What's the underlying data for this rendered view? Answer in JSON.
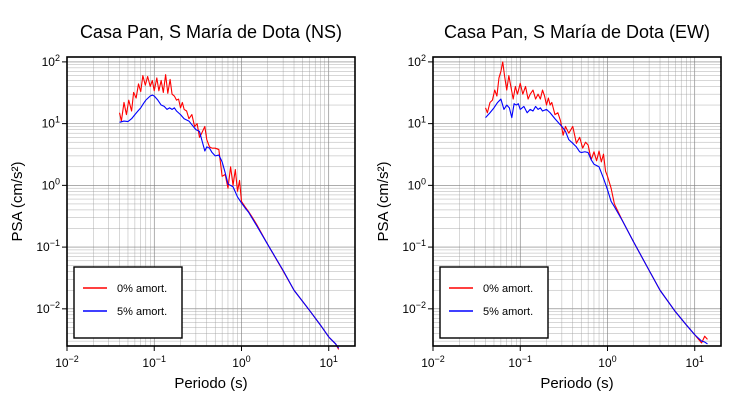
{
  "figure": {
    "background": "#ffffff"
  },
  "chart_data": [
    {
      "type": "line",
      "title": "Casa Pan, S María de Dota (NS)",
      "xlabel": "Periodo (s)",
      "ylabel": "PSA (cm/s²)",
      "xscale": "log",
      "yscale": "log",
      "xlim": [
        0.01,
        20
      ],
      "ylim": [
        0.0025,
        120
      ],
      "xticks": [
        {
          "base": "10",
          "exp": "−2"
        },
        {
          "base": "10",
          "exp": "−1"
        },
        {
          "base": "10",
          "exp": "0"
        },
        {
          "base": "10",
          "exp": "1"
        }
      ],
      "yticks": [
        {
          "base": "10",
          "exp": "−2"
        },
        {
          "base": "10",
          "exp": "−1"
        },
        {
          "base": "10",
          "exp": "0"
        },
        {
          "base": "10",
          "exp": "1"
        },
        {
          "base": "10",
          "exp": "2"
        }
      ],
      "grid": true,
      "legend_position": "bottom-left",
      "series": [
        {
          "name": "0% amort.",
          "color": "#ff0000",
          "x": [
            0.04,
            0.042,
            0.045,
            0.048,
            0.051,
            0.055,
            0.058,
            0.062,
            0.066,
            0.07,
            0.074,
            0.079,
            0.084,
            0.09,
            0.095,
            0.1,
            0.107,
            0.113,
            0.12,
            0.127,
            0.135,
            0.143,
            0.152,
            0.16,
            0.17,
            0.18,
            0.19,
            0.2,
            0.21,
            0.22,
            0.235,
            0.25,
            0.27,
            0.29,
            0.31,
            0.33,
            0.35,
            0.38,
            0.4,
            0.43,
            0.46,
            0.5,
            0.55,
            0.6,
            0.65,
            0.7,
            0.75,
            0.8,
            0.85,
            0.9,
            0.95,
            1.0,
            1.1,
            1.2,
            1.3,
            1.5,
            2.0,
            3.0,
            4.0,
            6.0,
            8.0,
            10.0,
            12.0,
            13.0
          ],
          "y": [
            15,
            11,
            22,
            14,
            24,
            16,
            32,
            26,
            44,
            33,
            60,
            42,
            58,
            40,
            50,
            34,
            55,
            34,
            50,
            32,
            62,
            31,
            52,
            30,
            28,
            24,
            25,
            18,
            22,
            17,
            16,
            12,
            14,
            9,
            10,
            6,
            7,
            9,
            5.5,
            4.2,
            4.0,
            4.0,
            3.8,
            1.4,
            1.5,
            0.9,
            2.0,
            1.0,
            1.8,
            0.8,
            1.2,
            0.55,
            0.45,
            0.38,
            0.32,
            0.23,
            0.11,
            0.041,
            0.02,
            0.0095,
            0.0055,
            0.0035,
            0.0027,
            0.0022
          ]
        },
        {
          "name": "5% amort.",
          "color": "#0000ff",
          "x": [
            0.04,
            0.045,
            0.05,
            0.055,
            0.06,
            0.065,
            0.07,
            0.075,
            0.08,
            0.085,
            0.09,
            0.095,
            0.1,
            0.11,
            0.12,
            0.13,
            0.14,
            0.15,
            0.16,
            0.17,
            0.18,
            0.2,
            0.22,
            0.25,
            0.28,
            0.3,
            0.33,
            0.35,
            0.38,
            0.4,
            0.43,
            0.46,
            0.5,
            0.55,
            0.6,
            0.65,
            0.7,
            0.8,
            0.9,
            1.0,
            1.1,
            1.2,
            1.5,
            2.0,
            3.0,
            4.0,
            6.0,
            8.0,
            10.0,
            12.0,
            13.0
          ],
          "y": [
            10.5,
            11,
            10.8,
            12,
            14,
            16,
            18,
            21,
            24,
            26,
            28,
            29,
            28,
            24,
            20,
            19,
            17,
            18,
            17,
            18,
            16,
            14,
            12,
            11,
            9,
            8,
            7.5,
            5.5,
            3.6,
            4.2,
            4.0,
            3.4,
            3.0,
            3.1,
            2.4,
            1.6,
            1.05,
            0.95,
            0.65,
            0.52,
            0.43,
            0.37,
            0.22,
            0.11,
            0.042,
            0.02,
            0.0095,
            0.0055,
            0.0035,
            0.0027,
            0.0023
          ]
        }
      ]
    },
    {
      "type": "line",
      "title": "Casa Pan, S María de Dota (EW)",
      "xlabel": "Periodo (s)",
      "ylabel": "PSA (cm/s²)",
      "xscale": "log",
      "yscale": "log",
      "xlim": [
        0.01,
        20
      ],
      "ylim": [
        0.0025,
        120
      ],
      "xticks": [
        {
          "base": "10",
          "exp": "−2"
        },
        {
          "base": "10",
          "exp": "−1"
        },
        {
          "base": "10",
          "exp": "0"
        },
        {
          "base": "10",
          "exp": "1"
        }
      ],
      "yticks": [
        {
          "base": "10",
          "exp": "−2"
        },
        {
          "base": "10",
          "exp": "−1"
        },
        {
          "base": "10",
          "exp": "0"
        },
        {
          "base": "10",
          "exp": "1"
        },
        {
          "base": "10",
          "exp": "2"
        }
      ],
      "grid": true,
      "legend_position": "bottom-left",
      "series": [
        {
          "name": "0% amort.",
          "color": "#ff0000",
          "x": [
            0.04,
            0.042,
            0.045,
            0.048,
            0.051,
            0.054,
            0.057,
            0.06,
            0.063,
            0.066,
            0.07,
            0.074,
            0.078,
            0.083,
            0.088,
            0.093,
            0.1,
            0.107,
            0.115,
            0.123,
            0.13,
            0.14,
            0.15,
            0.16,
            0.17,
            0.18,
            0.19,
            0.2,
            0.21,
            0.22,
            0.23,
            0.25,
            0.27,
            0.29,
            0.31,
            0.33,
            0.36,
            0.4,
            0.44,
            0.48,
            0.52,
            0.56,
            0.6,
            0.65,
            0.7,
            0.75,
            0.8,
            0.85,
            0.9,
            0.95,
            1.0,
            1.1,
            1.2,
            1.5,
            2.0,
            3.0,
            4.0,
            6.0,
            8.0,
            10.0,
            12.0,
            13.0,
            14.0
          ],
          "y": [
            18,
            15,
            22,
            24,
            35,
            28,
            55,
            70,
            100,
            60,
            35,
            60,
            40,
            25,
            40,
            30,
            45,
            30,
            40,
            25,
            30,
            35,
            25,
            30,
            25,
            35,
            28,
            20,
            26,
            20,
            22,
            14,
            15,
            11,
            6.5,
            9,
            7,
            9,
            4.8,
            6,
            4,
            5,
            4.5,
            2.6,
            3.5,
            2.5,
            3.6,
            2.4,
            3.2,
            1.7,
            1.4,
            0.9,
            0.5,
            0.26,
            0.12,
            0.042,
            0.02,
            0.009,
            0.0055,
            0.0038,
            0.0028,
            0.0036,
            0.0032
          ]
        },
        {
          "name": "5% amort.",
          "color": "#0000ff",
          "x": [
            0.04,
            0.045,
            0.05,
            0.055,
            0.06,
            0.065,
            0.07,
            0.075,
            0.08,
            0.085,
            0.09,
            0.095,
            0.1,
            0.11,
            0.12,
            0.13,
            0.14,
            0.15,
            0.16,
            0.17,
            0.18,
            0.2,
            0.22,
            0.25,
            0.28,
            0.3,
            0.33,
            0.36,
            0.4,
            0.44,
            0.48,
            0.5,
            0.55,
            0.6,
            0.65,
            0.7,
            0.8,
            0.9,
            1.0,
            1.1,
            1.2,
            1.5,
            2.0,
            3.0,
            4.0,
            6.0,
            8.0,
            10.0,
            12.0,
            13.0,
            14.0
          ],
          "y": [
            12.5,
            15,
            18,
            22,
            25,
            17,
            20,
            18,
            12.5,
            21,
            20,
            21,
            17,
            19,
            15,
            17,
            16,
            19,
            17,
            18,
            16,
            17,
            15,
            12,
            10,
            9,
            7.5,
            5.5,
            4.8,
            4.2,
            3.5,
            3.4,
            3.5,
            3.4,
            2.6,
            2.2,
            2.0,
            1.3,
            0.85,
            0.55,
            0.45,
            0.26,
            0.12,
            0.042,
            0.02,
            0.009,
            0.0055,
            0.0038,
            0.003,
            0.0029,
            0.0027
          ]
        }
      ]
    }
  ]
}
